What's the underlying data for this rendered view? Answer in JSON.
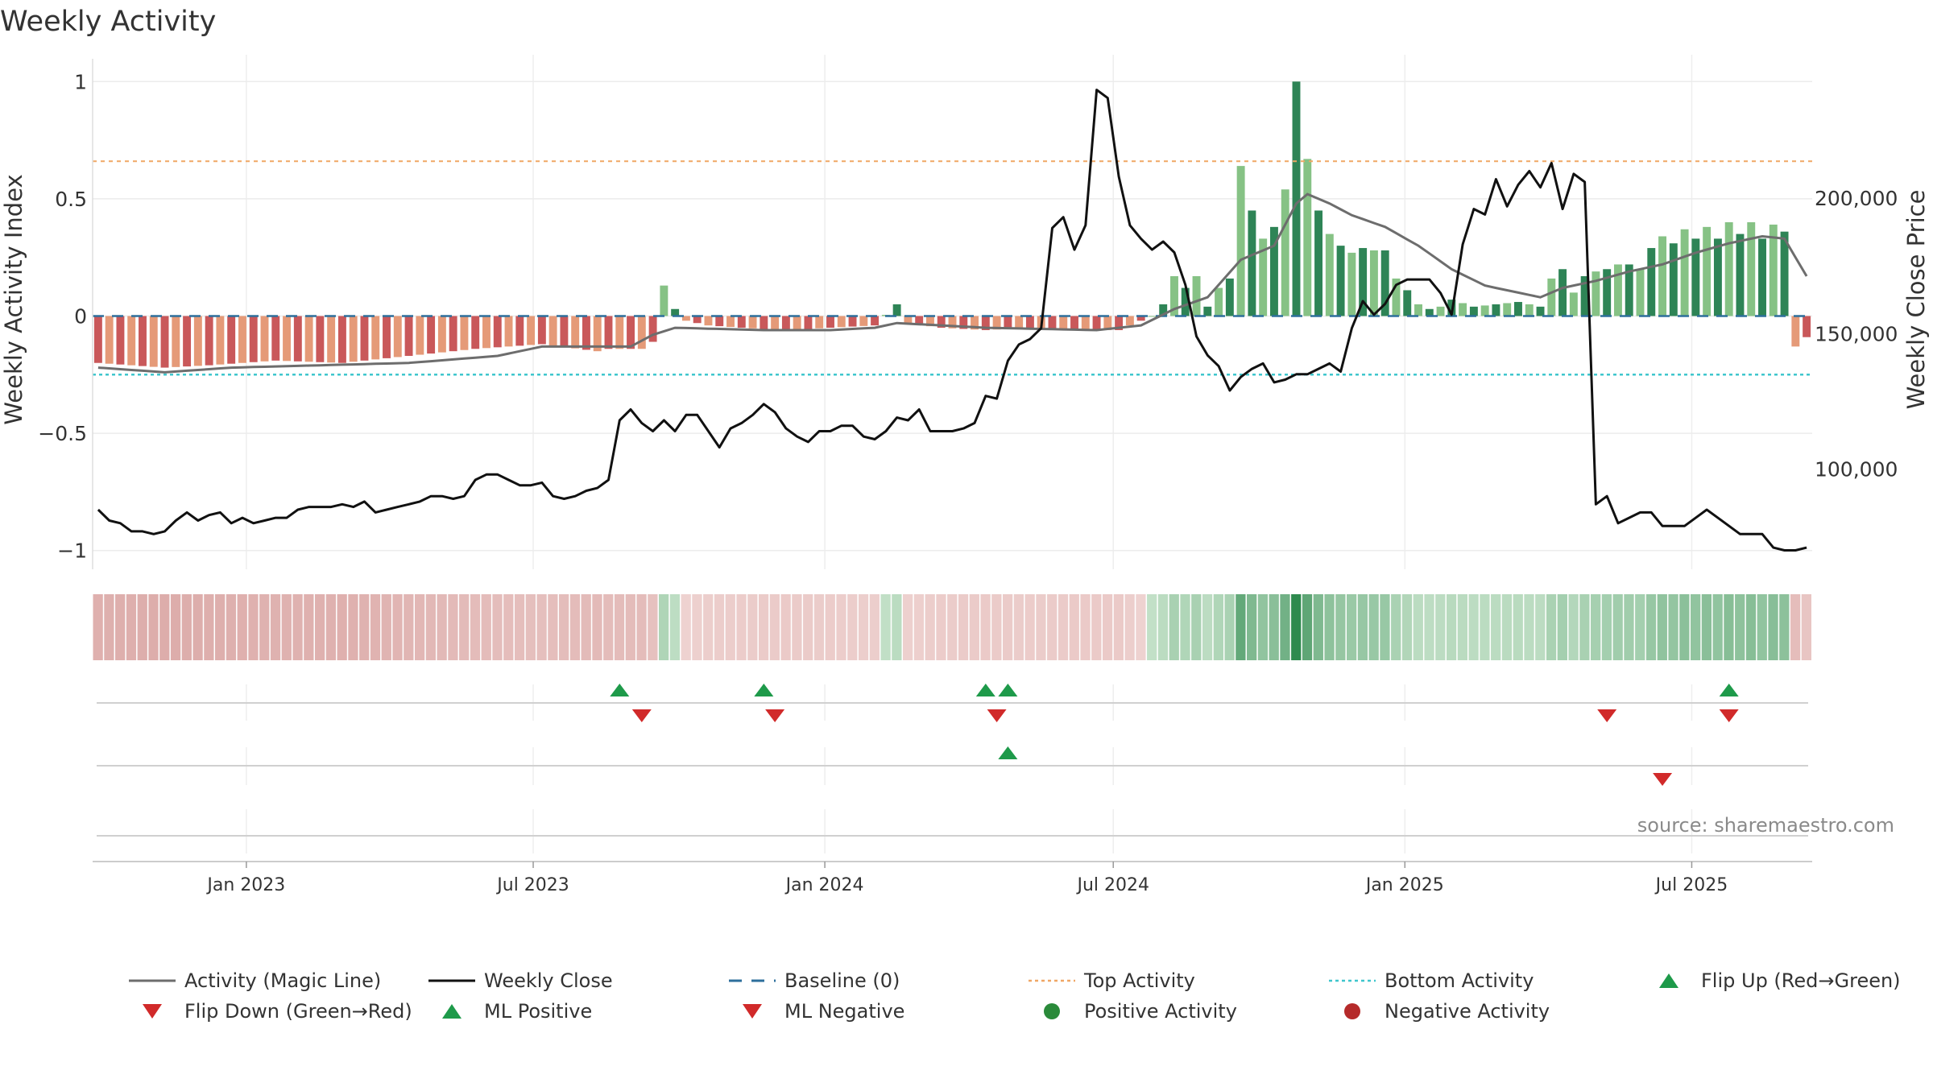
{
  "chart_data": {
    "type": "bar",
    "title": "Weekly Activity",
    "ylabel_left": "Weekly Activity Index",
    "ylabel_right": "Weekly Close Price",
    "x_range": [
      "2022-09-26",
      "2025-09-08"
    ],
    "x_ticks": [
      "Jan 2023",
      "Jul 2023",
      "Jan 2024",
      "Jul 2024",
      "Jan 2025",
      "Jul 2025"
    ],
    "x_tick_dates": [
      "2023-01-01",
      "2023-07-01",
      "2024-01-01",
      "2024-07-01",
      "2025-01-01",
      "2025-07-01"
    ],
    "y_left_range": [
      -1.08,
      1.08
    ],
    "y_left_ticks": [
      "1",
      "0.5",
      "0",
      "−0.5",
      "−1"
    ],
    "y_left_tick_values": [
      1,
      0.5,
      0,
      -0.5,
      -1
    ],
    "y_right_range": [
      63000,
      250000
    ],
    "y_right_ticks": [
      "200,000",
      "150,000",
      "100,000"
    ],
    "y_right_tick_values": [
      200000,
      150000,
      100000
    ],
    "reference_lines": {
      "top": 0.66,
      "bottom": -0.25,
      "baseline": 0
    },
    "colors": {
      "pos_dark": "#2e8456",
      "pos_light": "#86c285",
      "neg_dark": "#c9585a",
      "neg_light": "#e59a78",
      "magic_line": "#6d6d6d",
      "close": "#111111",
      "baseline": "#2d6f9c",
      "top": "#f0a765",
      "bottom": "#3fc6cd",
      "marker_up": "#1e9a4a",
      "marker_down": "#d12a2a"
    },
    "activity_keypoints": [
      [
        0,
        -0.2
      ],
      [
        6,
        -0.22
      ],
      [
        10,
        -0.21
      ],
      [
        16,
        -0.19
      ],
      [
        22,
        -0.2
      ],
      [
        28,
        -0.17
      ],
      [
        34,
        -0.14
      ],
      [
        40,
        -0.12
      ],
      [
        45,
        -0.15
      ],
      [
        46,
        -0.14
      ],
      [
        48,
        -0.14
      ],
      [
        49,
        -0.14
      ],
      [
        50,
        -0.11
      ],
      [
        51,
        0.13
      ],
      [
        52,
        0.03
      ],
      [
        53,
        -0.02
      ],
      [
        55,
        -0.04
      ],
      [
        58,
        -0.05
      ],
      [
        62,
        -0.06
      ],
      [
        66,
        -0.05
      ],
      [
        70,
        -0.04
      ],
      [
        72,
        0.05
      ],
      [
        73,
        -0.03
      ],
      [
        76,
        -0.05
      ],
      [
        80,
        -0.06
      ],
      [
        84,
        -0.05
      ],
      [
        88,
        -0.06
      ],
      [
        92,
        -0.06
      ],
      [
        95,
        0.0
      ],
      [
        96,
        0.05
      ],
      [
        97,
        0.17
      ],
      [
        98,
        0.12
      ],
      [
        99,
        0.17
      ],
      [
        100,
        0.04
      ],
      [
        101,
        0.12
      ],
      [
        102,
        0.16
      ],
      [
        103,
        0.64
      ],
      [
        104,
        0.45
      ],
      [
        105,
        0.33
      ],
      [
        106,
        0.38
      ],
      [
        107,
        0.54
      ],
      [
        108,
        1.0
      ],
      [
        109,
        0.67
      ],
      [
        110,
        0.45
      ],
      [
        111,
        0.35
      ],
      [
        112,
        0.3
      ],
      [
        113,
        0.27
      ],
      [
        114,
        0.29
      ],
      [
        115,
        0.28
      ],
      [
        116,
        0.28
      ],
      [
        117,
        0.16
      ],
      [
        118,
        0.11
      ],
      [
        119,
        0.05
      ],
      [
        120,
        0.03
      ],
      [
        121,
        0.04
      ],
      [
        122,
        0.07
      ],
      [
        124,
        0.04
      ],
      [
        126,
        0.05
      ],
      [
        128,
        0.06
      ],
      [
        130,
        0.04
      ],
      [
        131,
        0.16
      ],
      [
        132,
        0.2
      ],
      [
        133,
        0.1
      ],
      [
        134,
        0.17
      ],
      [
        135,
        0.19
      ],
      [
        136,
        0.2
      ],
      [
        137,
        0.22
      ],
      [
        138,
        0.22
      ],
      [
        139,
        0.2
      ],
      [
        140,
        0.29
      ],
      [
        141,
        0.34
      ],
      [
        142,
        0.31
      ],
      [
        143,
        0.37
      ],
      [
        144,
        0.33
      ],
      [
        145,
        0.38
      ],
      [
        146,
        0.33
      ],
      [
        147,
        0.4
      ],
      [
        148,
        0.35
      ],
      [
        149,
        0.4
      ],
      [
        150,
        0.33
      ],
      [
        151,
        0.39
      ],
      [
        152,
        0.36
      ],
      [
        153,
        -0.13
      ],
      [
        154,
        -0.09
      ],
      [
        155,
        -0.05
      ],
      [
        156,
        -0.1
      ],
      [
        157,
        -0.12
      ],
      [
        158,
        -0.14
      ],
      [
        159,
        -0.15
      ],
      [
        160,
        -0.15
      ],
      [
        161,
        -0.14
      ],
      [
        162,
        0.02
      ],
      [
        163,
        -0.12
      ],
      [
        165,
        -0.15
      ],
      [
        167,
        -0.18
      ],
      [
        168,
        -0.22
      ],
      [
        169,
        -0.25
      ],
      [
        170,
        -0.23
      ],
      [
        171,
        -0.26
      ]
    ],
    "magic_line_keypoints": [
      [
        0,
        -0.22
      ],
      [
        6,
        -0.24
      ],
      [
        12,
        -0.22
      ],
      [
        20,
        -0.21
      ],
      [
        28,
        -0.2
      ],
      [
        36,
        -0.17
      ],
      [
        40,
        -0.13
      ],
      [
        46,
        -0.13
      ],
      [
        48,
        -0.13
      ],
      [
        50,
        -0.08
      ],
      [
        52,
        -0.05
      ],
      [
        60,
        -0.06
      ],
      [
        66,
        -0.06
      ],
      [
        70,
        -0.05
      ],
      [
        72,
        -0.03
      ],
      [
        80,
        -0.05
      ],
      [
        90,
        -0.06
      ],
      [
        94,
        -0.04
      ],
      [
        97,
        0.03
      ],
      [
        100,
        0.08
      ],
      [
        103,
        0.24
      ],
      [
        106,
        0.3
      ],
      [
        108,
        0.48
      ],
      [
        109,
        0.52
      ],
      [
        111,
        0.48
      ],
      [
        113,
        0.43
      ],
      [
        116,
        0.38
      ],
      [
        119,
        0.3
      ],
      [
        122,
        0.2
      ],
      [
        125,
        0.13
      ],
      [
        128,
        0.1
      ],
      [
        130,
        0.08
      ],
      [
        132,
        0.12
      ],
      [
        135,
        0.15
      ],
      [
        138,
        0.19
      ],
      [
        141,
        0.22
      ],
      [
        144,
        0.27
      ],
      [
        147,
        0.31
      ],
      [
        150,
        0.34
      ],
      [
        152,
        0.33
      ],
      [
        154,
        0.17
      ],
      [
        157,
        0.05
      ],
      [
        160,
        -0.07
      ],
      [
        163,
        -0.12
      ],
      [
        166,
        -0.17
      ],
      [
        169,
        -0.2
      ],
      [
        171,
        -0.23
      ]
    ],
    "close_keypoints": [
      [
        0,
        85000
      ],
      [
        1,
        81000
      ],
      [
        2,
        80000
      ],
      [
        3,
        77000
      ],
      [
        4,
        77000
      ],
      [
        5,
        76000
      ],
      [
        6,
        77000
      ],
      [
        7,
        81000
      ],
      [
        8,
        84000
      ],
      [
        9,
        81000
      ],
      [
        10,
        83000
      ],
      [
        11,
        84000
      ],
      [
        12,
        80000
      ],
      [
        13,
        82000
      ],
      [
        14,
        80000
      ],
      [
        15,
        81000
      ],
      [
        16,
        82000
      ],
      [
        17,
        82000
      ],
      [
        18,
        85000
      ],
      [
        19,
        86000
      ],
      [
        20,
        86000
      ],
      [
        21,
        86000
      ],
      [
        22,
        87000
      ],
      [
        23,
        86000
      ],
      [
        24,
        88000
      ],
      [
        25,
        84000
      ],
      [
        26,
        85000
      ],
      [
        27,
        86000
      ],
      [
        28,
        87000
      ],
      [
        29,
        88000
      ],
      [
        30,
        90000
      ],
      [
        31,
        90000
      ],
      [
        32,
        89000
      ],
      [
        33,
        90000
      ],
      [
        34,
        96000
      ],
      [
        35,
        98000
      ],
      [
        36,
        98000
      ],
      [
        37,
        96000
      ],
      [
        38,
        94000
      ],
      [
        39,
        94000
      ],
      [
        40,
        95000
      ],
      [
        41,
        90000
      ],
      [
        42,
        89000
      ],
      [
        43,
        90000
      ],
      [
        44,
        92000
      ],
      [
        45,
        93000
      ],
      [
        46,
        96000
      ],
      [
        47,
        118000
      ],
      [
        48,
        122000
      ],
      [
        49,
        117000
      ],
      [
        50,
        114000
      ],
      [
        51,
        118000
      ],
      [
        52,
        114000
      ],
      [
        53,
        120000
      ],
      [
        54,
        120000
      ],
      [
        55,
        114000
      ],
      [
        56,
        108000
      ],
      [
        57,
        115000
      ],
      [
        58,
        117000
      ],
      [
        59,
        120000
      ],
      [
        60,
        124000
      ],
      [
        61,
        121000
      ],
      [
        62,
        115000
      ],
      [
        63,
        112000
      ],
      [
        64,
        110000
      ],
      [
        65,
        114000
      ],
      [
        66,
        114000
      ],
      [
        67,
        116000
      ],
      [
        68,
        116000
      ],
      [
        69,
        112000
      ],
      [
        70,
        111000
      ],
      [
        71,
        114000
      ],
      [
        72,
        119000
      ],
      [
        73,
        118000
      ],
      [
        74,
        122000
      ],
      [
        75,
        114000
      ],
      [
        76,
        114000
      ],
      [
        77,
        114000
      ],
      [
        78,
        115000
      ],
      [
        79,
        117000
      ],
      [
        80,
        127000
      ],
      [
        81,
        126000
      ],
      [
        82,
        140000
      ],
      [
        83,
        146000
      ],
      [
        84,
        148000
      ],
      [
        85,
        152000
      ],
      [
        86,
        189000
      ],
      [
        87,
        193000
      ],
      [
        88,
        181000
      ],
      [
        89,
        190000
      ],
      [
        90,
        240000
      ],
      [
        91,
        237000
      ],
      [
        92,
        208000
      ],
      [
        93,
        190000
      ],
      [
        94,
        185000
      ],
      [
        95,
        181000
      ],
      [
        96,
        184000
      ],
      [
        97,
        180000
      ],
      [
        98,
        168000
      ],
      [
        99,
        149000
      ],
      [
        100,
        142000
      ],
      [
        101,
        138000
      ],
      [
        102,
        129000
      ],
      [
        103,
        134000
      ],
      [
        104,
        137000
      ],
      [
        105,
        139000
      ],
      [
        106,
        132000
      ],
      [
        107,
        133000
      ],
      [
        108,
        135000
      ],
      [
        109,
        135000
      ],
      [
        110,
        137000
      ],
      [
        111,
        139000
      ],
      [
        112,
        136000
      ],
      [
        113,
        152000
      ],
      [
        114,
        162000
      ],
      [
        115,
        157000
      ],
      [
        116,
        161000
      ],
      [
        117,
        168000
      ],
      [
        118,
        170000
      ],
      [
        119,
        170000
      ],
      [
        120,
        170000
      ],
      [
        121,
        165000
      ],
      [
        122,
        157000
      ],
      [
        123,
        183000
      ],
      [
        124,
        196000
      ],
      [
        125,
        194000
      ],
      [
        126,
        207000
      ],
      [
        127,
        197000
      ],
      [
        128,
        205000
      ],
      [
        129,
        210000
      ],
      [
        130,
        204000
      ],
      [
        131,
        213000
      ],
      [
        132,
        196000
      ],
      [
        133,
        209000
      ],
      [
        134,
        206000
      ],
      [
        135,
        87000
      ],
      [
        136,
        90000
      ],
      [
        137,
        80000
      ],
      [
        138,
        82000
      ],
      [
        139,
        84000
      ],
      [
        140,
        84000
      ],
      [
        141,
        79000
      ],
      [
        142,
        79000
      ],
      [
        143,
        79000
      ],
      [
        144,
        82000
      ],
      [
        145,
        85000
      ],
      [
        146,
        82000
      ],
      [
        147,
        79000
      ],
      [
        148,
        76000
      ],
      [
        149,
        76000
      ],
      [
        150,
        76000
      ],
      [
        151,
        71000
      ],
      [
        152,
        70000
      ],
      [
        153,
        70000
      ],
      [
        154,
        71000
      ],
      [
        155,
        72000
      ]
    ],
    "color_band_index": "activity",
    "event_rows": {
      "flip_up_weeks": [
        47,
        60,
        80,
        82,
        147
      ],
      "flip_down_weeks": [
        49,
        61,
        81,
        136,
        147
      ],
      "ml_positive_weeks": [
        82
      ],
      "ml_negative_weeks": [
        141
      ]
    },
    "source_text": "source: sharemaestro.com",
    "legend": [
      {
        "label": "Activity (Magic Line)",
        "type": "line",
        "color": "#6d6d6d",
        "dash": "none"
      },
      {
        "label": "Weekly Close",
        "type": "line",
        "color": "#111111",
        "dash": "none"
      },
      {
        "label": "Baseline (0)",
        "type": "line",
        "color": "#2d6f9c",
        "dash": "dashed"
      },
      {
        "label": "Top Activity",
        "type": "line",
        "color": "#f0a765",
        "dash": "dotted"
      },
      {
        "label": "Bottom Activity",
        "type": "line",
        "color": "#3fc6cd",
        "dash": "dotted"
      },
      {
        "label": "Flip Up (Red→Green)",
        "type": "tri-up",
        "color": "#1e9a4a"
      },
      {
        "label": "Flip Down (Green→Red)",
        "type": "tri-down",
        "color": "#d12a2a"
      },
      {
        "label": "ML Positive",
        "type": "tri-up",
        "color": "#1e9a4a"
      },
      {
        "label": "ML Negative",
        "type": "tri-down",
        "color": "#d12a2a"
      },
      {
        "label": "Positive Activity",
        "type": "circle",
        "color": "#2a8a3a"
      },
      {
        "label": "Negative Activity",
        "type": "circle",
        "color": "#b52a2a"
      }
    ]
  }
}
